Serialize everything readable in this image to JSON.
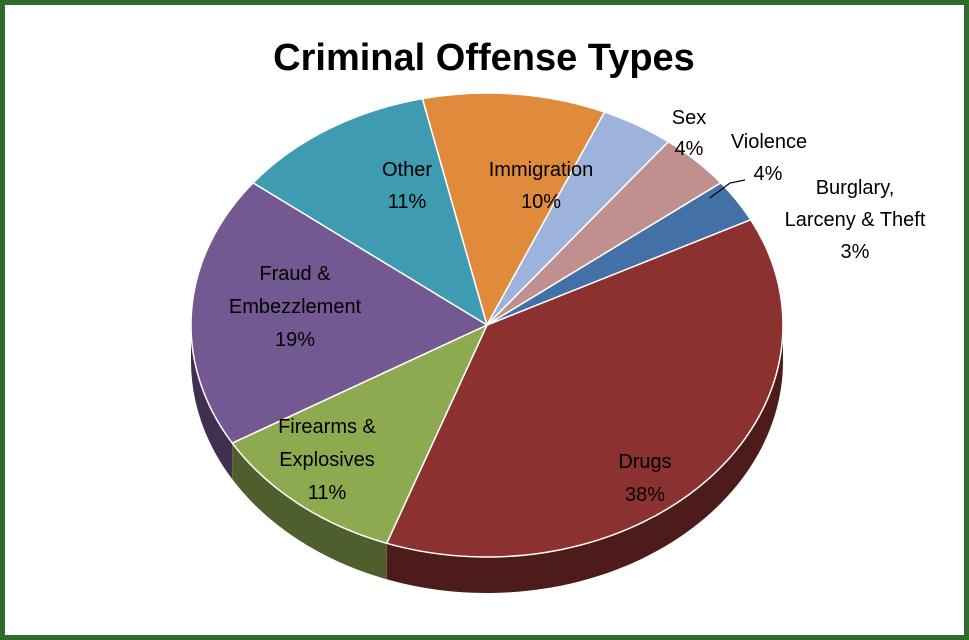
{
  "chart_data": {
    "type": "pie",
    "title": "Criminal Offense Types",
    "slices": [
      {
        "label": "Drugs",
        "value": 38,
        "pct_label": "38%",
        "color": "#8b3130"
      },
      {
        "label": "Firearms & Explosives",
        "value": 11,
        "pct_label": "11%",
        "color": "#8eaa50"
      },
      {
        "label": "Fraud & Embezzlement",
        "value": 19,
        "pct_label": "19%",
        "color": "#735892"
      },
      {
        "label": "Other",
        "value": 11,
        "pct_label": "11%",
        "color": "#3e9bb1"
      },
      {
        "label": "Immigration",
        "value": 10,
        "pct_label": "10%",
        "color": "#e08a3c"
      },
      {
        "label": "Sex",
        "value": 4,
        "pct_label": "4%",
        "color": "#9db3db"
      },
      {
        "label": "Violence",
        "value": 4,
        "pct_label": "4%",
        "color": "#c0908f"
      },
      {
        "label": "Burglary, Larceny & Theft",
        "value": 3,
        "pct_label": "3%",
        "color": "#4470a8"
      }
    ]
  },
  "labels": {
    "drugs": [
      "Drugs",
      "38%"
    ],
    "firearms": [
      "Firearms &",
      "Explosives",
      "11%"
    ],
    "fraud": [
      "Fraud &",
      "Embezzlement",
      "19%"
    ],
    "other": [
      "Other",
      "11%"
    ],
    "immigration": [
      "Immigration",
      "10%"
    ],
    "sex": [
      "Sex",
      "4%"
    ],
    "violence": [
      "Violence",
      "4%"
    ],
    "burglary": [
      "Burglary,",
      "Larceny & Theft",
      "3%"
    ]
  }
}
